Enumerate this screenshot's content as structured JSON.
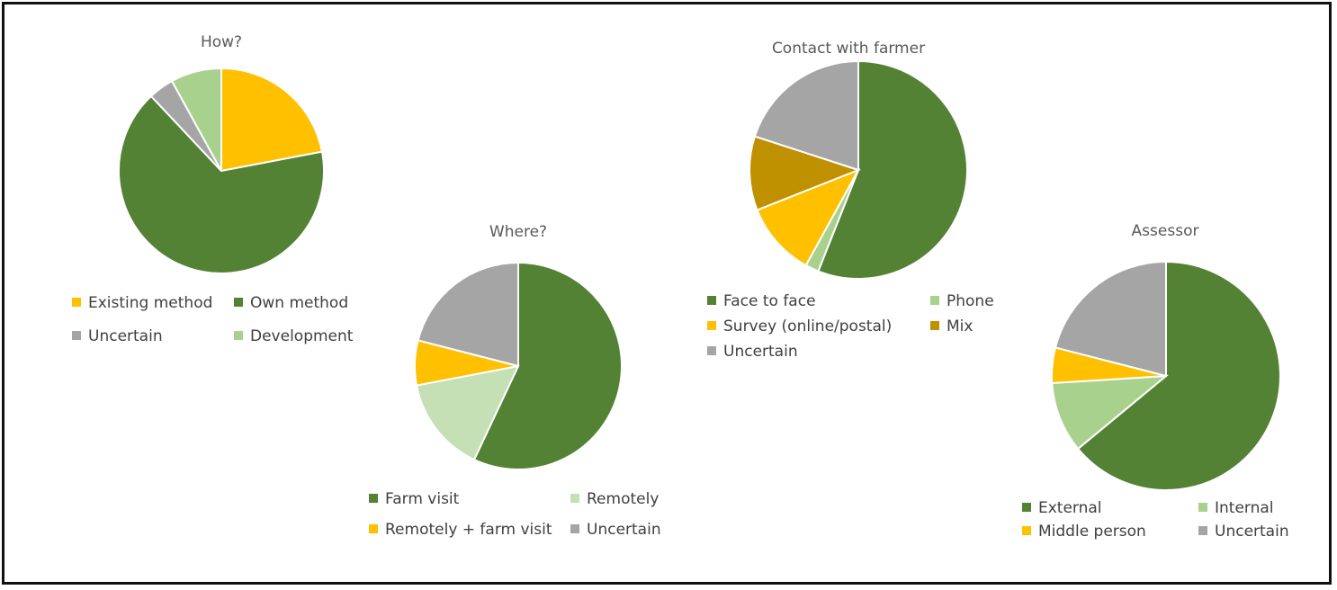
{
  "chart_data": [
    {
      "type": "pie",
      "title": "How?",
      "slices": [
        {
          "label": "Existing method",
          "value": 22,
          "color": "#ffc000"
        },
        {
          "label": "Own method",
          "value": 66,
          "color": "#548235"
        },
        {
          "label": "Uncertain",
          "value": 4,
          "color": "#a5a5a5"
        },
        {
          "label": "Development",
          "value": 8,
          "color": "#a9d18e"
        }
      ],
      "legend": [
        "Existing method",
        "Own method",
        "Uncertain",
        "Development"
      ]
    },
    {
      "type": "pie",
      "title": "Where?",
      "slices": [
        {
          "label": "Farm visit",
          "value": 57,
          "color": "#548235"
        },
        {
          "label": "Remotely",
          "value": 15,
          "color": "#c5e0b4"
        },
        {
          "label": "Remotely + farm visit",
          "value": 7,
          "color": "#ffc000"
        },
        {
          "label": "Uncertain",
          "value": 21,
          "color": "#a5a5a5"
        }
      ],
      "legend": [
        "Farm visit",
        "Remotely",
        "Remotely + farm visit",
        "Uncertain"
      ]
    },
    {
      "type": "pie",
      "title": "Contact with farmer",
      "slices": [
        {
          "label": "Face to face",
          "value": 56,
          "color": "#548235"
        },
        {
          "label": "Phone",
          "value": 2,
          "color": "#a9d18e"
        },
        {
          "label": "Survey (online/postal)",
          "value": 11,
          "color": "#ffc000"
        },
        {
          "label": "Mix",
          "value": 11,
          "color": "#bf9000"
        },
        {
          "label": "Uncertain",
          "value": 20,
          "color": "#a5a5a5"
        }
      ],
      "legend": [
        "Face to face",
        "Phone",
        "Survey (online/postal)",
        "Mix",
        "Uncertain"
      ]
    },
    {
      "type": "pie",
      "title": "Assessor",
      "slices": [
        {
          "label": "External",
          "value": 64,
          "color": "#548235"
        },
        {
          "label": "Internal",
          "value": 10,
          "color": "#a9d18e"
        },
        {
          "label": "Middle person",
          "value": 5,
          "color": "#ffc000"
        },
        {
          "label": "Uncertain",
          "value": 21,
          "color": "#a5a5a5"
        }
      ],
      "legend": [
        "External",
        "Internal",
        "Middle person",
        "Uncertain"
      ]
    }
  ]
}
